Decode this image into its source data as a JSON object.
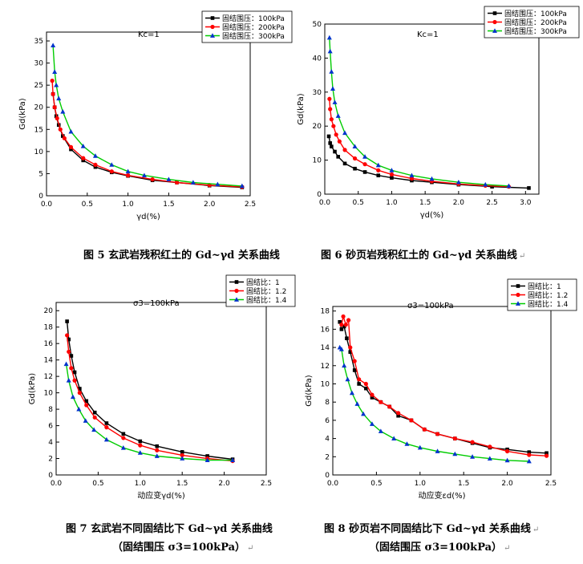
{
  "figures": [
    {
      "caption": "图 5 玄武岩残积红土的 Gd~γd 关系曲线",
      "caption_mark": "",
      "annotation": "Kc=1",
      "chart_data": {
        "type": "line",
        "xlabel": "γd(%)",
        "ylabel": "Gd(kPa)",
        "xlim": [
          0,
          2.5
        ],
        "ylim": [
          0,
          37
        ],
        "xticks": [
          0,
          0.5,
          1.0,
          1.5,
          2.0,
          2.5
        ],
        "xtick_labels": [
          "0.0",
          "0.5",
          "1.0",
          "1.5",
          "2.0",
          "2.5"
        ],
        "yticks": [
          0,
          5,
          10,
          15,
          20,
          25,
          30,
          35
        ],
        "ytick_labels": [
          "0",
          "5",
          "10",
          "15",
          "20",
          "25",
          "30",
          "35"
        ],
        "legend_position": "top-right",
        "series": [
          {
            "name": "固结围压：100kPa",
            "color": "#000000",
            "marker": "square",
            "x": [
              0.08,
              0.1,
              0.12,
              0.15,
              0.2,
              0.3,
              0.45,
              0.6,
              0.8,
              1.0,
              1.3,
              1.6,
              2.0,
              2.4
            ],
            "y": [
              23,
              20,
              18,
              16,
              13.5,
              10.5,
              8,
              6.5,
              5.3,
              4.5,
              3.5,
              3,
              2.3,
              1.9
            ]
          },
          {
            "name": "固结围压：200kPa",
            "color": "#ff0000",
            "marker": "circle",
            "x": [
              0.07,
              0.08,
              0.1,
              0.13,
              0.17,
              0.22,
              0.3,
              0.45,
              0.6,
              0.8,
              1.0,
              1.3,
              1.6,
              2.0,
              2.4
            ],
            "y": [
              26,
              23,
              20,
              17.5,
              15,
              13,
              11,
              8.5,
              7,
              5.5,
              4.6,
              3.7,
              3,
              2.4,
              2
            ]
          },
          {
            "name": "固结围压：300kPa",
            "color": "#0033cc",
            "marker": "triangle",
            "x": [
              0.08,
              0.1,
              0.12,
              0.15,
              0.2,
              0.3,
              0.45,
              0.6,
              0.8,
              1.0,
              1.2,
              1.5,
              1.8,
              2.1,
              2.4
            ],
            "y": [
              34,
              28,
              25,
              22,
              19,
              14.5,
              11.2,
              9,
              7,
              5.5,
              4.6,
              3.7,
              3,
              2.6,
              2.2
            ]
          }
        ]
      }
    },
    {
      "caption": "图 6 砂页岩残积红土的 Gd~γd 关系曲线",
      "caption_mark": "↵",
      "annotation": "Kc=1",
      "chart_data": {
        "type": "line",
        "xlabel": "γd(%)",
        "ylabel": "Gd(kPa)",
        "xlim": [
          0,
          3.2
        ],
        "ylim": [
          0,
          50
        ],
        "xticks": [
          0,
          0.5,
          1.0,
          1.5,
          2.0,
          2.5,
          3.0
        ],
        "xtick_labels": [
          "0.0",
          "0.5",
          "1.0",
          "1.5",
          "2.0",
          "2.5",
          "3.0"
        ],
        "yticks": [
          0,
          10,
          20,
          30,
          40,
          50
        ],
        "ytick_labels": [
          "0",
          "10",
          "20",
          "30",
          "40",
          "50"
        ],
        "legend_position": "top-right",
        "series": [
          {
            "name": "固结围压：100kPa",
            "color": "#000000",
            "marker": "square",
            "x": [
              0.06,
              0.08,
              0.1,
              0.15,
              0.2,
              0.3,
              0.45,
              0.6,
              0.8,
              1.0,
              1.3,
              1.6,
              2.0,
              2.5,
              3.05
            ],
            "y": [
              17,
              15,
              14,
              12.5,
              11,
              9,
              7.5,
              6.5,
              5.5,
              4.8,
              4,
              3.5,
              2.8,
              2.2,
              1.8
            ]
          },
          {
            "name": "固结围压：200kPa",
            "color": "#ff0000",
            "marker": "circle",
            "x": [
              0.07,
              0.08,
              0.1,
              0.13,
              0.17,
              0.22,
              0.3,
              0.45,
              0.6,
              0.8,
              1.0,
              1.3,
              1.6,
              2.0,
              2.4,
              2.75
            ],
            "y": [
              28,
              25,
              22,
              20,
              17.5,
              15.5,
              13,
              10.5,
              8.8,
              7,
              5.8,
              4.6,
              3.8,
              3,
              2.5,
              2.2
            ]
          },
          {
            "name": "固结围压：300kPa",
            "color": "#0033cc",
            "marker": "triangle",
            "x": [
              0.07,
              0.08,
              0.1,
              0.12,
              0.15,
              0.2,
              0.3,
              0.45,
              0.6,
              0.8,
              1.0,
              1.3,
              1.6,
              2.0,
              2.4,
              2.75
            ],
            "y": [
              46,
              42,
              36,
              31,
              27,
              23,
              18,
              14,
              11,
              8.5,
              7,
              5.5,
              4.5,
              3.5,
              2.8,
              2.4
            ]
          }
        ]
      }
    },
    {
      "caption": "图 7  玄武岩不同固结比下 Gd~γd 关系曲线",
      "caption2": "（固结围压 σ3=100kPa）",
      "caption_mark": "↵",
      "annotation": "σ3=100kPa",
      "chart_data": {
        "type": "line",
        "xlabel": "动应变γd(%)",
        "ylabel": "Gd(kPa)",
        "xlim": [
          0,
          2.5
        ],
        "ylim": [
          0,
          21
        ],
        "xticks": [
          0,
          0.5,
          1.0,
          1.5,
          2.0,
          2.5
        ],
        "xtick_labels": [
          "0.0",
          "0.5",
          "1.0",
          "1.5",
          "2.0",
          "2.5"
        ],
        "yticks": [
          0,
          2,
          4,
          6,
          8,
          10,
          12,
          14,
          16,
          18,
          20
        ],
        "ytick_labels": [
          "0",
          "2",
          "4",
          "6",
          "8",
          "10",
          "12",
          "14",
          "16",
          "18",
          "20"
        ],
        "legend_position": "top-right",
        "series": [
          {
            "name": "固结比：1",
            "color": "#000000",
            "marker": "square",
            "x": [
              0.13,
              0.15,
              0.18,
              0.22,
              0.28,
              0.36,
              0.46,
              0.6,
              0.8,
              1.0,
              1.2,
              1.5,
              1.8,
              2.1
            ],
            "y": [
              18.7,
              16.5,
              14.5,
              12.5,
              10.5,
              9,
              7.6,
              6.3,
              5,
              4.1,
              3.5,
              2.8,
              2.3,
              1.9
            ]
          },
          {
            "name": "固结比：1.2",
            "color": "#ff0000",
            "marker": "circle",
            "x": [
              0.13,
              0.15,
              0.18,
              0.22,
              0.28,
              0.36,
              0.46,
              0.6,
              0.8,
              1.0,
              1.2,
              1.5,
              1.8,
              2.1
            ],
            "y": [
              17,
              15,
              13,
              11.5,
              10,
              8.5,
              7,
              5.8,
              4.5,
              3.6,
              3,
              2.4,
              2,
              1.7
            ]
          },
          {
            "name": "固结比：1.4",
            "color": "#0033cc",
            "marker": "triangle",
            "x": [
              0.12,
              0.15,
              0.2,
              0.27,
              0.35,
              0.45,
              0.6,
              0.8,
              1.0,
              1.2,
              1.5,
              1.8,
              2.1
            ],
            "y": [
              13.5,
              11.5,
              9.5,
              8,
              6.6,
              5.5,
              4.3,
              3.3,
              2.7,
              2.3,
              2,
              1.8,
              1.8
            ]
          }
        ]
      }
    },
    {
      "caption": "图 8  砂页岩不同固结比下 Gd~γd 关系曲线",
      "caption2": "（固结围压 σ3=100kPa）",
      "caption_mark": "↵",
      "caption2_mark": "↵",
      "annotation": "σ3=100kPa",
      "chart_data": {
        "type": "line",
        "xlabel": "动应变εd(%)",
        "ylabel": "Gd(kPa)",
        "xlim": [
          0,
          2.5
        ],
        "ylim": [
          0,
          18.5
        ],
        "xticks": [
          0,
          0.5,
          1.0,
          1.5,
          2.0,
          2.5
        ],
        "xtick_labels": [
          "0.0",
          "0.5",
          "1.0",
          "1.5",
          "2.0",
          "2.5"
        ],
        "yticks": [
          0,
          2,
          4,
          6,
          8,
          10,
          12,
          14,
          16,
          18
        ],
        "ytick_labels": [
          "0",
          "2",
          "4",
          "6",
          "8",
          "10",
          "12",
          "14",
          "16",
          "18"
        ],
        "legend_position": "top-right",
        "series": [
          {
            "name": "固结比：1",
            "color": "#000000",
            "marker": "square",
            "x": [
              0.08,
              0.1,
              0.13,
              0.16,
              0.2,
              0.25,
              0.3,
              0.38,
              0.45,
              0.55,
              0.65,
              0.75,
              0.9,
              1.05,
              1.2,
              1.4,
              1.6,
              1.8,
              2.0,
              2.25,
              2.45
            ],
            "y": [
              16.8,
              16,
              16.3,
              15,
              13.5,
              11.5,
              10,
              9.5,
              8.5,
              8,
              7.5,
              6.5,
              6,
              5,
              4.5,
              4,
              3.5,
              3,
              2.8,
              2.5,
              2.4
            ]
          },
          {
            "name": "固结比：1.2",
            "color": "#ff0000",
            "marker": "circle",
            "x": [
              0.1,
              0.12,
              0.15,
              0.18,
              0.2,
              0.25,
              0.3,
              0.38,
              0.45,
              0.55,
              0.65,
              0.75,
              0.9,
              1.05,
              1.2,
              1.4,
              1.6,
              1.8,
              2.0,
              2.25,
              2.45
            ],
            "y": [
              16.5,
              17.4,
              16.5,
              17,
              14,
              12.5,
              10.5,
              10,
              8.8,
              8,
              7.5,
              6.8,
              6,
              5,
              4.5,
              4,
              3.6,
              3.1,
              2.6,
              2.2,
              2.1
            ]
          },
          {
            "name": "固结比：1.4",
            "color": "#0033cc",
            "marker": "triangle",
            "x": [
              0.08,
              0.1,
              0.13,
              0.17,
              0.22,
              0.28,
              0.35,
              0.45,
              0.55,
              0.7,
              0.85,
              1.0,
              1.2,
              1.4,
              1.6,
              1.8,
              2.0,
              2.25
            ],
            "y": [
              14,
              13.8,
              12,
              10.5,
              9,
              7.8,
              6.7,
              5.6,
              4.8,
              4,
              3.4,
              3,
              2.6,
              2.3,
              2,
              1.8,
              1.6,
              1.5
            ]
          }
        ]
      }
    }
  ]
}
